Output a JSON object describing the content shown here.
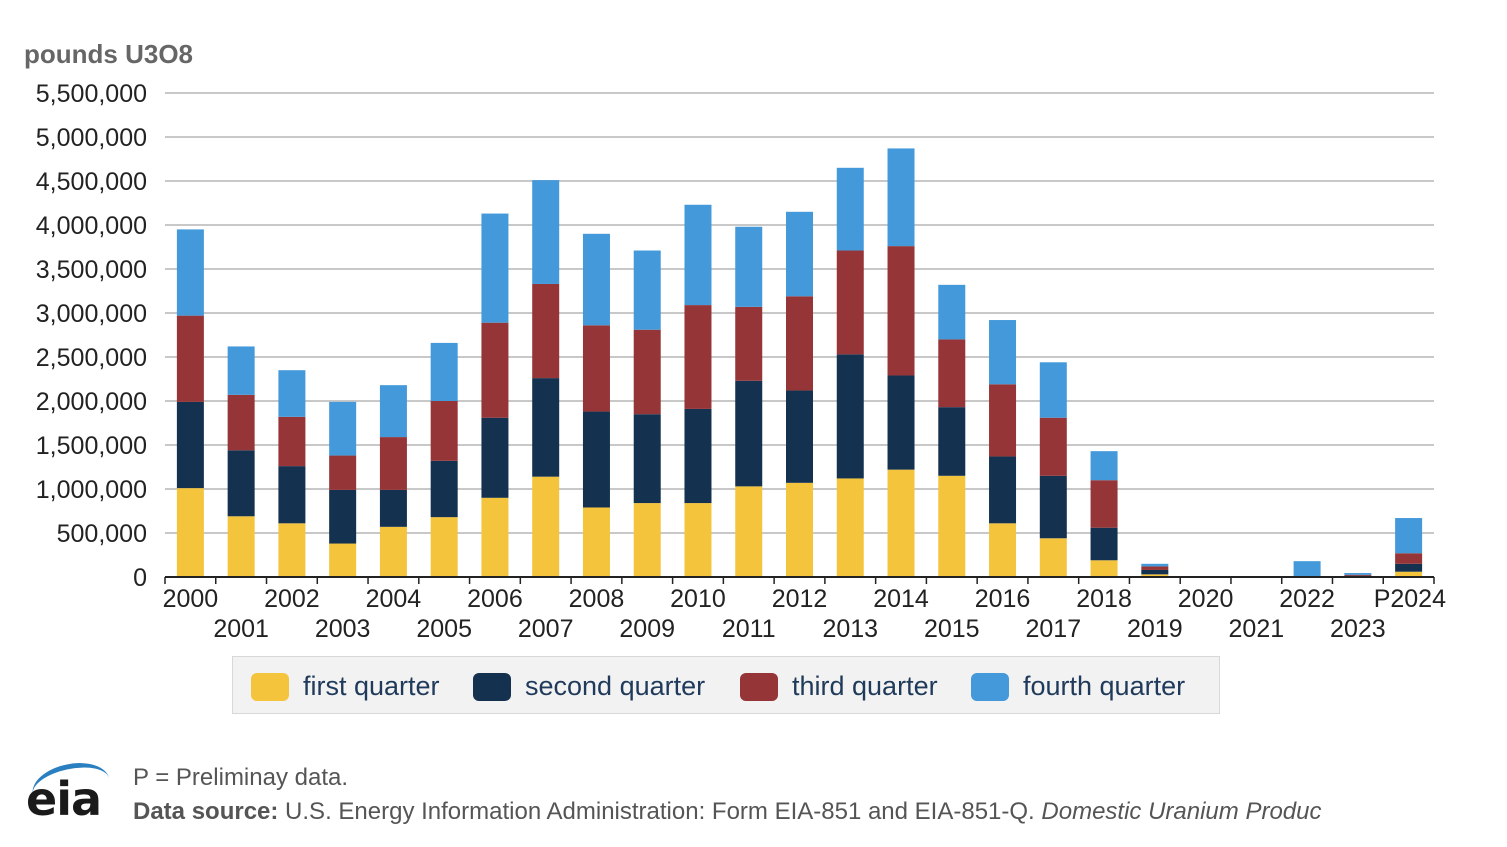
{
  "chart_data": {
    "type": "bar",
    "stacked": true,
    "ylabel": "pounds U3O8",
    "ylim": [
      0,
      5500000
    ],
    "yticks": [
      0,
      500000,
      1000000,
      1500000,
      2000000,
      2500000,
      3000000,
      3500000,
      4000000,
      4500000,
      5000000,
      5500000
    ],
    "ytick_labels": [
      "0",
      "500,000",
      "1,000,000",
      "1,500,000",
      "2,000,000",
      "2,500,000",
      "3,000,000",
      "3,500,000",
      "4,000,000",
      "4,500,000",
      "5,000,000",
      "5,500,000"
    ],
    "grid": true,
    "legend_position": "bottom",
    "categories": [
      "2000",
      "2001",
      "2002",
      "2003",
      "2004",
      "2005",
      "2006",
      "2007",
      "2008",
      "2009",
      "2010",
      "2011",
      "2012",
      "2013",
      "2014",
      "2015",
      "2016",
      "2017",
      "2018",
      "2019",
      "2020",
      "2021",
      "2022",
      "2023",
      "P2024"
    ],
    "series": [
      {
        "name": "first quarter",
        "color": "#f5c43d",
        "values": [
          1010000,
          690000,
          610000,
          380000,
          570000,
          680000,
          900000,
          1140000,
          790000,
          840000,
          840000,
          1030000,
          1070000,
          1120000,
          1220000,
          1150000,
          610000,
          440000,
          190000,
          30000,
          0,
          0,
          0,
          0,
          60000
        ]
      },
      {
        "name": "second quarter",
        "color": "#14324f",
        "values": [
          980000,
          750000,
          650000,
          610000,
          420000,
          640000,
          910000,
          1120000,
          1090000,
          1010000,
          1070000,
          1200000,
          1050000,
          1410000,
          1070000,
          780000,
          760000,
          710000,
          370000,
          50000,
          0,
          0,
          0,
          15000,
          90000
        ]
      },
      {
        "name": "third quarter",
        "color": "#963537",
        "values": [
          980000,
          630000,
          560000,
          390000,
          600000,
          680000,
          1080000,
          1070000,
          980000,
          960000,
          1180000,
          840000,
          1070000,
          1180000,
          1470000,
          770000,
          820000,
          660000,
          540000,
          40000,
          0,
          0,
          10000,
          10000,
          120000
        ]
      },
      {
        "name": "fourth quarter",
        "color": "#4499da",
        "values": [
          980000,
          550000,
          530000,
          610000,
          590000,
          660000,
          1240000,
          1180000,
          1040000,
          900000,
          1140000,
          910000,
          960000,
          940000,
          1110000,
          620000,
          730000,
          630000,
          330000,
          30000,
          0,
          10000,
          170000,
          20000,
          400000
        ]
      }
    ]
  },
  "footer": {
    "note": "P = Preliminay data.",
    "source_label": "Data source:",
    "source_text": " U.S. Energy Information Administration: Form EIA-851 and EIA-851-Q. ",
    "source_italic": "Domestic Uranium Produc"
  },
  "logo": {
    "text": "eia",
    "color": "#2a7fc0"
  }
}
